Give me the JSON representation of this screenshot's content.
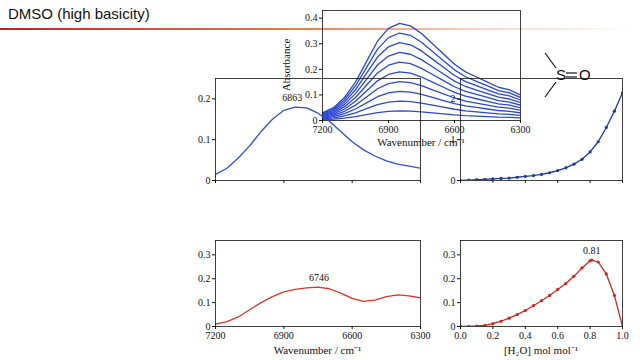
{
  "title": "DMSO (high basicity)",
  "molecule": {
    "atoms": [
      "S",
      "O"
    ]
  },
  "chart_data": [
    {
      "type": "line",
      "x": [
        7200,
        7150,
        7100,
        7050,
        7000,
        6950,
        6900,
        6850,
        6800,
        6750,
        6700,
        6650,
        6600,
        6550,
        6500,
        6450,
        6400,
        6350,
        6300
      ],
      "series": [
        {
          "values": [
            0.03,
            0.05,
            0.09,
            0.15,
            0.23,
            0.31,
            0.36,
            0.38,
            0.37,
            0.34,
            0.3,
            0.26,
            0.22,
            0.19,
            0.17,
            0.15,
            0.13,
            0.12,
            0.1
          ]
        },
        {
          "values": [
            0.027,
            0.045,
            0.081,
            0.135,
            0.207,
            0.279,
            0.324,
            0.342,
            0.333,
            0.306,
            0.27,
            0.234,
            0.198,
            0.171,
            0.153,
            0.135,
            0.117,
            0.108,
            0.09
          ]
        },
        {
          "values": [
            0.024,
            0.04,
            0.072,
            0.12,
            0.184,
            0.248,
            0.288,
            0.304,
            0.296,
            0.272,
            0.24,
            0.208,
            0.176,
            0.152,
            0.136,
            0.12,
            0.104,
            0.096,
            0.08
          ]
        },
        {
          "values": [
            0.021,
            0.035,
            0.063,
            0.105,
            0.161,
            0.217,
            0.252,
            0.266,
            0.259,
            0.238,
            0.21,
            0.182,
            0.154,
            0.133,
            0.119,
            0.105,
            0.091,
            0.084,
            0.07
          ]
        },
        {
          "values": [
            0.018,
            0.03,
            0.054,
            0.09,
            0.138,
            0.186,
            0.216,
            0.228,
            0.222,
            0.204,
            0.18,
            0.156,
            0.132,
            0.114,
            0.102,
            0.09,
            0.078,
            0.072,
            0.06
          ]
        },
        {
          "values": [
            0.015,
            0.025,
            0.045,
            0.075,
            0.115,
            0.155,
            0.18,
            0.19,
            0.185,
            0.17,
            0.15,
            0.13,
            0.11,
            0.095,
            0.085,
            0.075,
            0.065,
            0.06,
            0.05
          ]
        },
        {
          "values": [
            0.012,
            0.02,
            0.036,
            0.06,
            0.092,
            0.124,
            0.144,
            0.152,
            0.148,
            0.136,
            0.12,
            0.104,
            0.088,
            0.076,
            0.068,
            0.06,
            0.052,
            0.048,
            0.04
          ]
        },
        {
          "values": [
            0.009,
            0.015,
            0.027,
            0.045,
            0.069,
            0.093,
            0.108,
            0.114,
            0.111,
            0.102,
            0.09,
            0.078,
            0.066,
            0.057,
            0.051,
            0.045,
            0.039,
            0.036,
            0.03
          ]
        },
        {
          "values": [
            0.006,
            0.01,
            0.018,
            0.03,
            0.046,
            0.062,
            0.072,
            0.076,
            0.074,
            0.068,
            0.06,
            0.052,
            0.044,
            0.038,
            0.034,
            0.03,
            0.026,
            0.024,
            0.02
          ]
        },
        {
          "values": [
            0.003,
            0.005,
            0.009,
            0.015,
            0.023,
            0.031,
            0.036,
            0.038,
            0.037,
            0.034,
            0.03,
            0.026,
            0.022,
            0.019,
            0.017,
            0.015,
            0.013,
            0.012,
            0.01
          ]
        }
      ],
      "color": "#2b47d4",
      "xlim": [
        7200,
        6300
      ],
      "xticks": [
        7200,
        6900,
        6600,
        6300
      ],
      "ylim": [
        0,
        0.43
      ],
      "yticks": [
        0,
        0.1,
        0.2,
        0.3,
        0.4
      ],
      "x_label": "Wavenumber / cm⁻¹",
      "y_label": "Absorbance"
    },
    {
      "type": "line",
      "x": [
        7200,
        7150,
        7100,
        7050,
        7000,
        6950,
        6900,
        6850,
        6800,
        6750,
        6700,
        6650,
        6600,
        6550,
        6500,
        6450,
        6400,
        6350,
        6300
      ],
      "values": [
        0.015,
        0.03,
        0.055,
        0.085,
        0.12,
        0.15,
        0.172,
        0.18,
        0.178,
        0.165,
        0.145,
        0.12,
        0.095,
        0.075,
        0.06,
        0.048,
        0.04,
        0.035,
        0.03
      ],
      "color": "#2e4fd0",
      "xlim": [
        7200,
        6300
      ],
      "xticks": [
        7200,
        6900,
        6600,
        6300
      ],
      "ylim": [
        0,
        0.25
      ],
      "yticks": [
        0,
        0.1,
        0.2
      ],
      "tick_labels": "y",
      "annotations": [
        {
          "text": "6863",
          "x": 6863,
          "y": 0.18
        }
      ]
    },
    {
      "type": "line",
      "x": [
        7200,
        7150,
        7100,
        7050,
        7000,
        6950,
        6900,
        6850,
        6800,
        6750,
        6700,
        6650,
        6600,
        6550,
        6500,
        6450,
        6400,
        6350,
        6300
      ],
      "values": [
        0.01,
        0.02,
        0.04,
        0.07,
        0.1,
        0.125,
        0.145,
        0.155,
        0.162,
        0.165,
        0.158,
        0.14,
        0.118,
        0.105,
        0.11,
        0.125,
        0.132,
        0.128,
        0.12
      ],
      "color": "#d8342a",
      "xlim": [
        7200,
        6300
      ],
      "xticks": [
        7200,
        6900,
        6600,
        6300
      ],
      "ylim": [
        0,
        0.36
      ],
      "yticks": [
        0,
        0.1,
        0.2,
        0.3
      ],
      "x_label": "Wavenumber / cm⁻¹",
      "annotations": [
        {
          "text": "6746",
          "x": 6746,
          "y": 0.165
        }
      ]
    },
    {
      "type": "line",
      "marker": "circle",
      "x": [
        0,
        0.05,
        0.1,
        0.15,
        0.2,
        0.25,
        0.3,
        0.35,
        0.4,
        0.45,
        0.5,
        0.55,
        0.6,
        0.65,
        0.7,
        0.75,
        0.8,
        0.85,
        0.9,
        0.95,
        1
      ],
      "values": [
        0,
        0.01,
        0.02,
        0.03,
        0.04,
        0.05,
        0.06,
        0.08,
        0.1,
        0.12,
        0.15,
        0.19,
        0.24,
        0.31,
        0.4,
        0.52,
        0.7,
        0.95,
        1.3,
        1.7,
        2.15
      ],
      "color": "#1f3b9a",
      "xlim": [
        0,
        1
      ],
      "xticks": [
        0,
        0.2,
        0.4,
        0.6,
        0.8,
        1
      ],
      "ylim": [
        0,
        2.5
      ],
      "yticks": [
        0,
        1,
        2
      ],
      "tick_labels": "y"
    },
    {
      "type": "line",
      "marker": "circle",
      "x": [
        0,
        0.05,
        0.1,
        0.15,
        0.2,
        0.25,
        0.3,
        0.35,
        0.4,
        0.45,
        0.5,
        0.55,
        0.6,
        0.65,
        0.7,
        0.75,
        0.8,
        0.81,
        0.85,
        0.9,
        0.95,
        1
      ],
      "values": [
        0,
        0,
        0.002,
        0.005,
        0.012,
        0.022,
        0.035,
        0.05,
        0.067,
        0.087,
        0.108,
        0.13,
        0.155,
        0.18,
        0.21,
        0.245,
        0.275,
        0.278,
        0.27,
        0.22,
        0.13,
        0
      ],
      "color": "#c8281e",
      "xlim": [
        0,
        1
      ],
      "xticks": [
        {
          "value": 0,
          "label": "0.0"
        },
        {
          "value": 0.2,
          "label": "0.2"
        },
        {
          "value": 0.4,
          "label": "0.4"
        },
        {
          "value": 0.6,
          "label": "0.6"
        },
        {
          "value": 0.8,
          "label": "0.8"
        },
        {
          "value": 1,
          "label": "1.0"
        }
      ],
      "ylim": [
        0,
        0.36
      ],
      "yticks": [
        0,
        0.1,
        0.2,
        0.3
      ],
      "x_label": "[H₂O] mol mol⁻¹",
      "annotations": [
        {
          "text": "0.81",
          "x": 0.81,
          "y": 0.278
        }
      ]
    }
  ]
}
